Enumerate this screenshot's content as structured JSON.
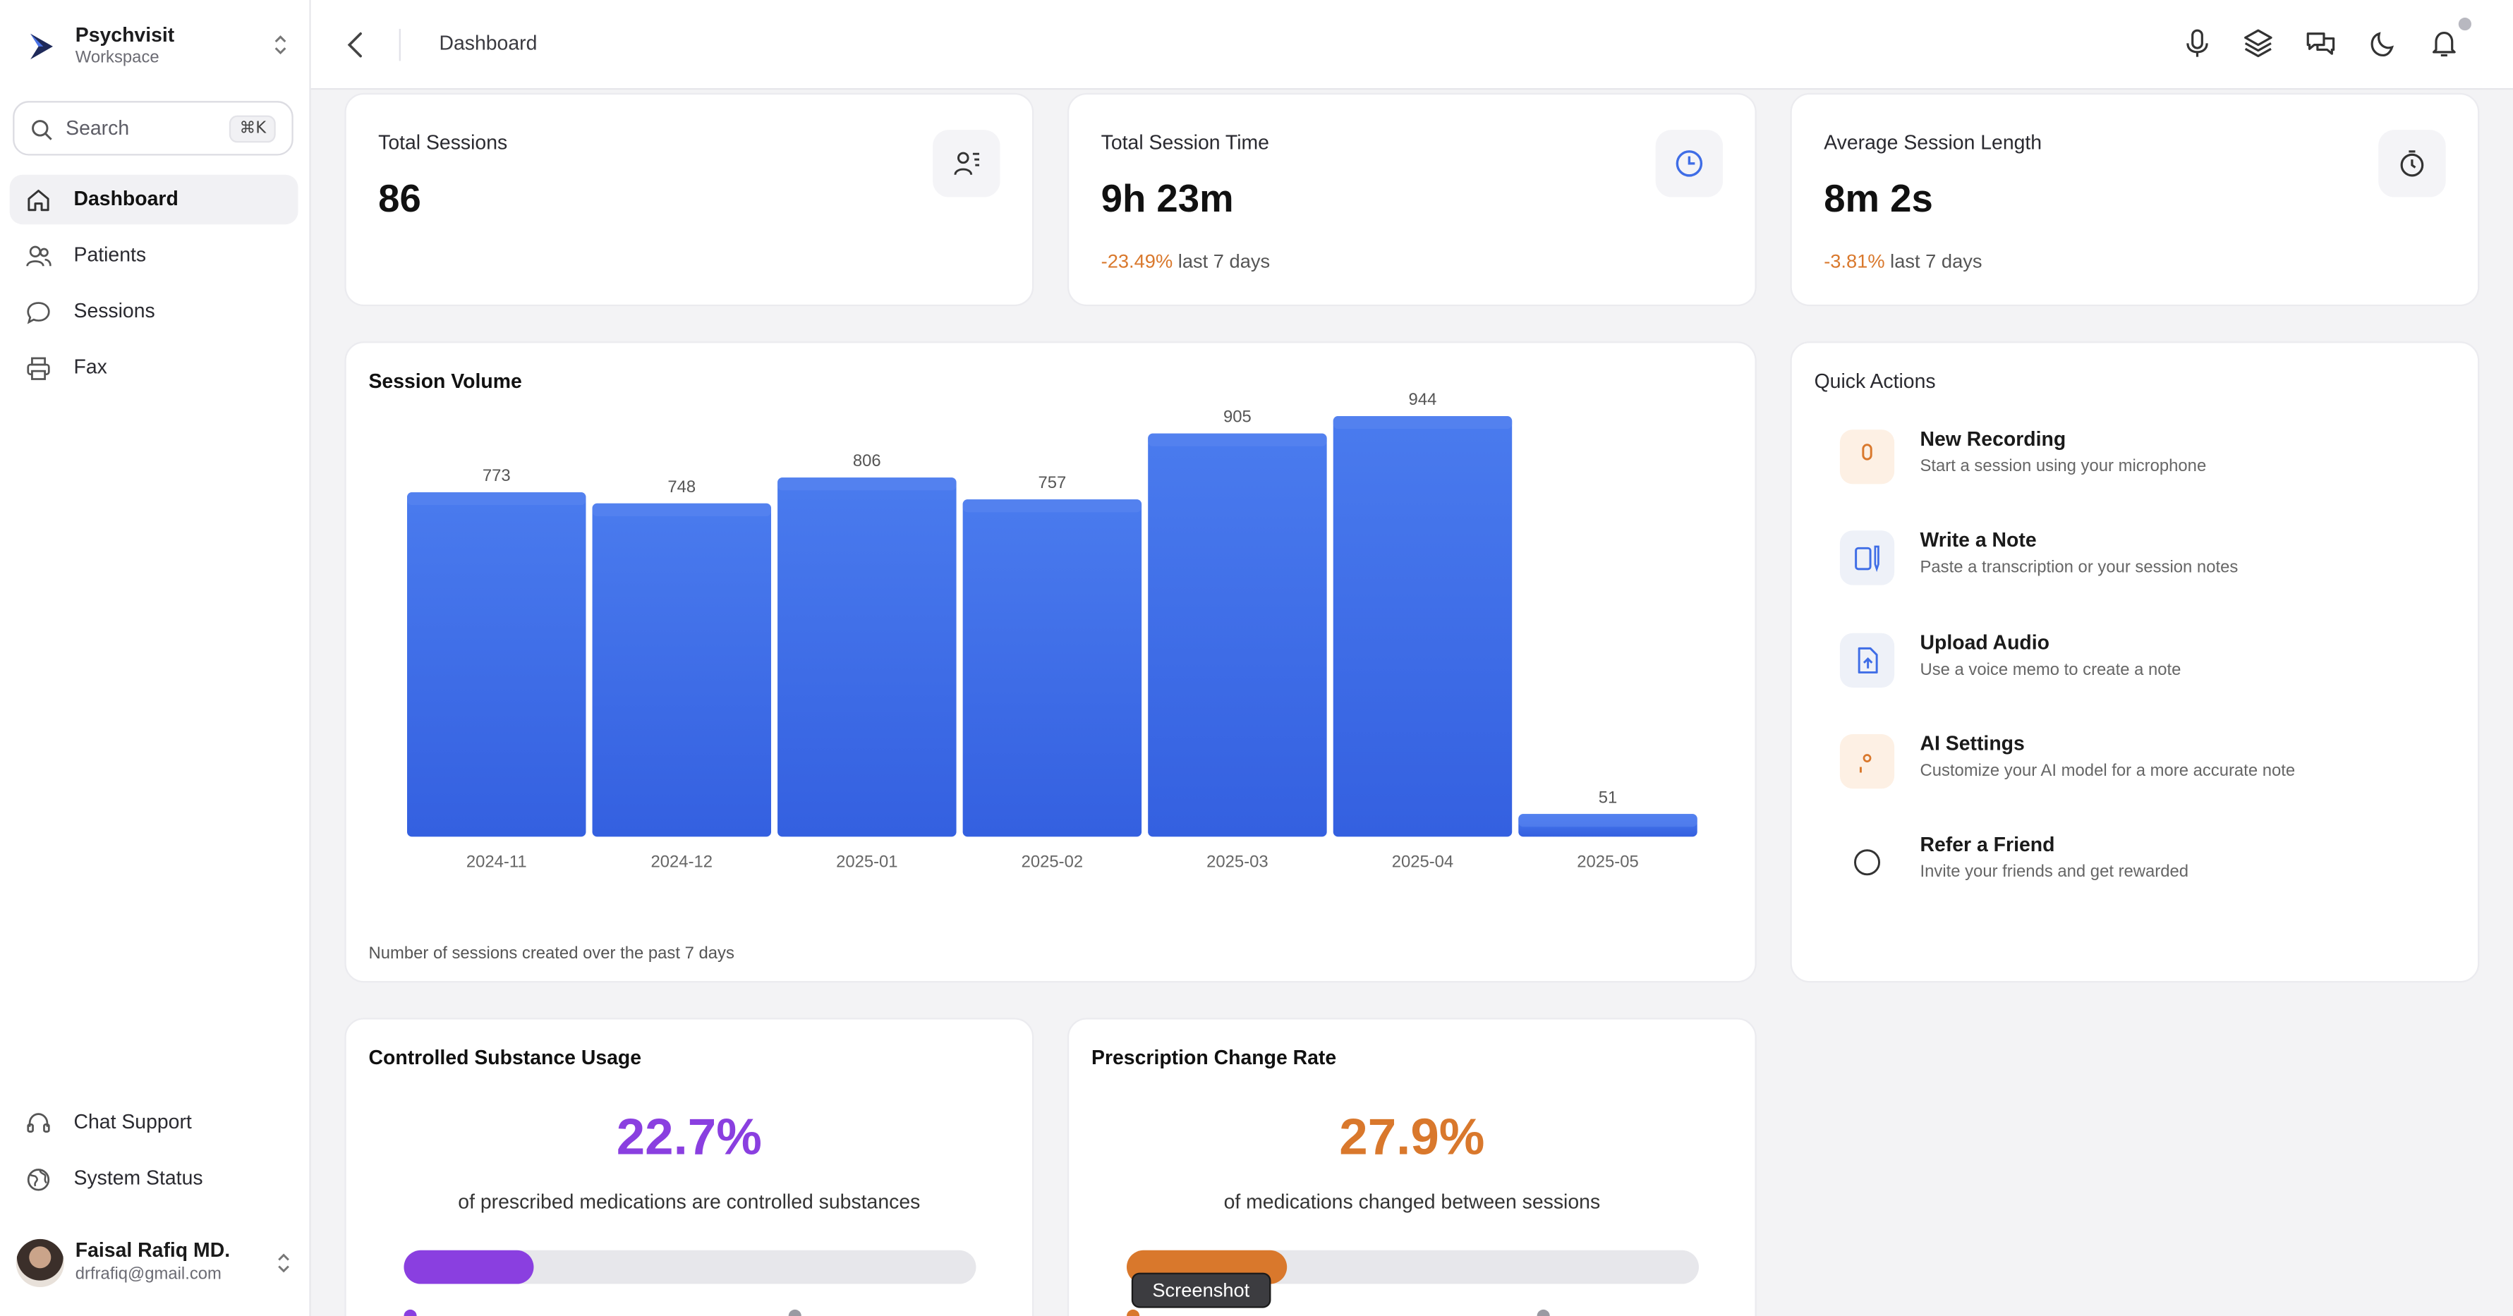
{
  "workspace": {
    "name": "Psychvisit",
    "subtitle": "Workspace"
  },
  "search": {
    "placeholder": "Search",
    "shortcut": "⌘K"
  },
  "sidebar": {
    "items": [
      {
        "label": "Dashboard",
        "icon": "home-icon",
        "active": true
      },
      {
        "label": "Patients",
        "icon": "users-icon"
      },
      {
        "label": "Sessions",
        "icon": "chat-icon"
      },
      {
        "label": "Fax",
        "icon": "printer-icon"
      }
    ],
    "bottom": [
      {
        "label": "Chat Support",
        "icon": "headset-icon"
      },
      {
        "label": "System Status",
        "icon": "globe-icon"
      }
    ]
  },
  "user": {
    "name": "Faisal Rafiq MD.",
    "email": "drfrafiq@gmail.com"
  },
  "topbar": {
    "title": "Dashboard",
    "icons": [
      "microphone-icon",
      "layers-icon",
      "messages-icon",
      "moon-icon",
      "bell-icon"
    ]
  },
  "stats": [
    {
      "label": "Total Sessions",
      "value": "86",
      "delta": "",
      "delta_suffix": "",
      "icon": "user-list-icon"
    },
    {
      "label": "Total Session Time",
      "value": "9h 23m",
      "delta": "-23.49%",
      "delta_suffix": "last 7 days",
      "icon": "clock-icon"
    },
    {
      "label": "Average Session Length",
      "value": "8m 2s",
      "delta": "-3.81%",
      "delta_suffix": "last 7 days",
      "icon": "stopwatch-icon"
    }
  ],
  "session_volume": {
    "title": "Session Volume",
    "footnote": "Number of sessions created over the past 7 days"
  },
  "chart_data": {
    "type": "bar",
    "title": "Session Volume",
    "categories": [
      "2024-11",
      "2024-12",
      "2025-01",
      "2025-02",
      "2025-03",
      "2025-04",
      "2025-05"
    ],
    "values": [
      773,
      748,
      806,
      757,
      905,
      944,
      51
    ],
    "ylim": [
      0,
      1000
    ],
    "grid": false,
    "bar_color": "#3f6de6"
  },
  "quick_actions": {
    "title": "Quick Actions",
    "items": [
      {
        "label": "New Recording",
        "desc": "Start a session using your microphone",
        "icon": "microphone-icon",
        "bg": "#fdf0e4",
        "fg": "#d9782c"
      },
      {
        "label": "Write a Note",
        "desc": "Paste a transcription or your session notes",
        "icon": "note-icon",
        "bg": "#eef1f8",
        "fg": "#3f6de6"
      },
      {
        "label": "Upload Audio",
        "desc": "Use a voice memo to create a note",
        "icon": "upload-file-icon",
        "bg": "#eef1f8",
        "fg": "#3f6de6"
      },
      {
        "label": "AI Settings",
        "desc": "Customize your AI model for a more accurate note",
        "icon": "ai-head-icon",
        "bg": "#fdf0e4",
        "fg": "#d9782c"
      },
      {
        "label": "Refer a Friend",
        "desc": "Invite your friends and get rewarded",
        "icon": "dollar-icon",
        "bg": "#ffffff",
        "fg": "#333333"
      }
    ]
  },
  "controlled": {
    "title": "Controlled Substance Usage",
    "percent": "22.7%",
    "desc": "of prescribed medications are controlled substances",
    "fraction": 0.227,
    "color": "#8a3fe0"
  },
  "prescription": {
    "title": "Prescription Change Rate",
    "percent": "27.9%",
    "desc": "of medications changed between sessions",
    "fraction": 0.279,
    "color": "#d9782c"
  },
  "tooltip": {
    "text": "Screenshot"
  }
}
